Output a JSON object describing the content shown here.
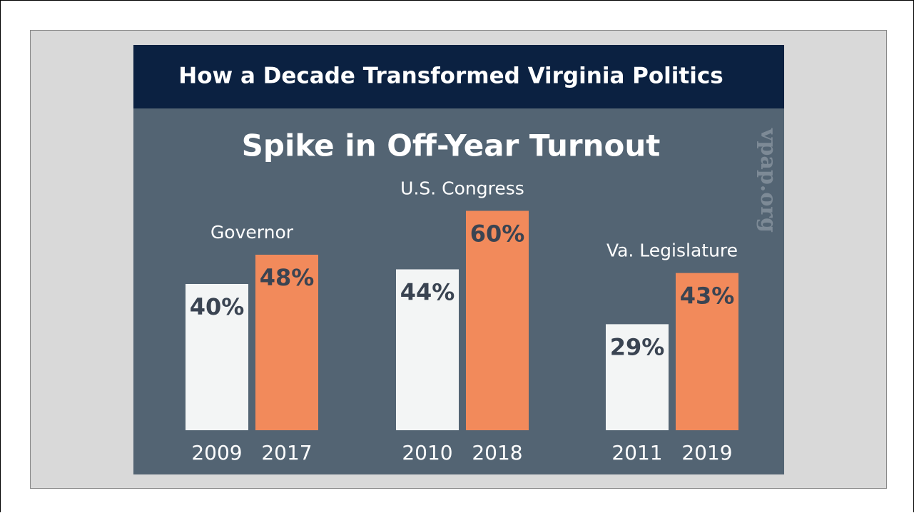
{
  "chart_data": {
    "type": "bar",
    "title": "How a Decade Transformed Virginia Politics",
    "subtitle": "Spike in Off-Year Turnout",
    "watermark": "vpap.org",
    "colors": [
      "#f3f5f5",
      "#f28a5b"
    ],
    "groups": [
      {
        "label": "Governor",
        "categories": [
          "2009",
          "2017"
        ],
        "values": [
          40,
          48
        ],
        "value_labels": [
          "40%",
          "48%"
        ]
      },
      {
        "label": "U.S. Congress",
        "categories": [
          "2010",
          "2018"
        ],
        "values": [
          44,
          60
        ],
        "value_labels": [
          "44%",
          "60%"
        ]
      },
      {
        "label": "Va. Legislature",
        "categories": [
          "2011",
          "2019"
        ],
        "values": [
          29,
          43
        ],
        "value_labels": [
          "29%",
          "43%"
        ]
      }
    ]
  }
}
